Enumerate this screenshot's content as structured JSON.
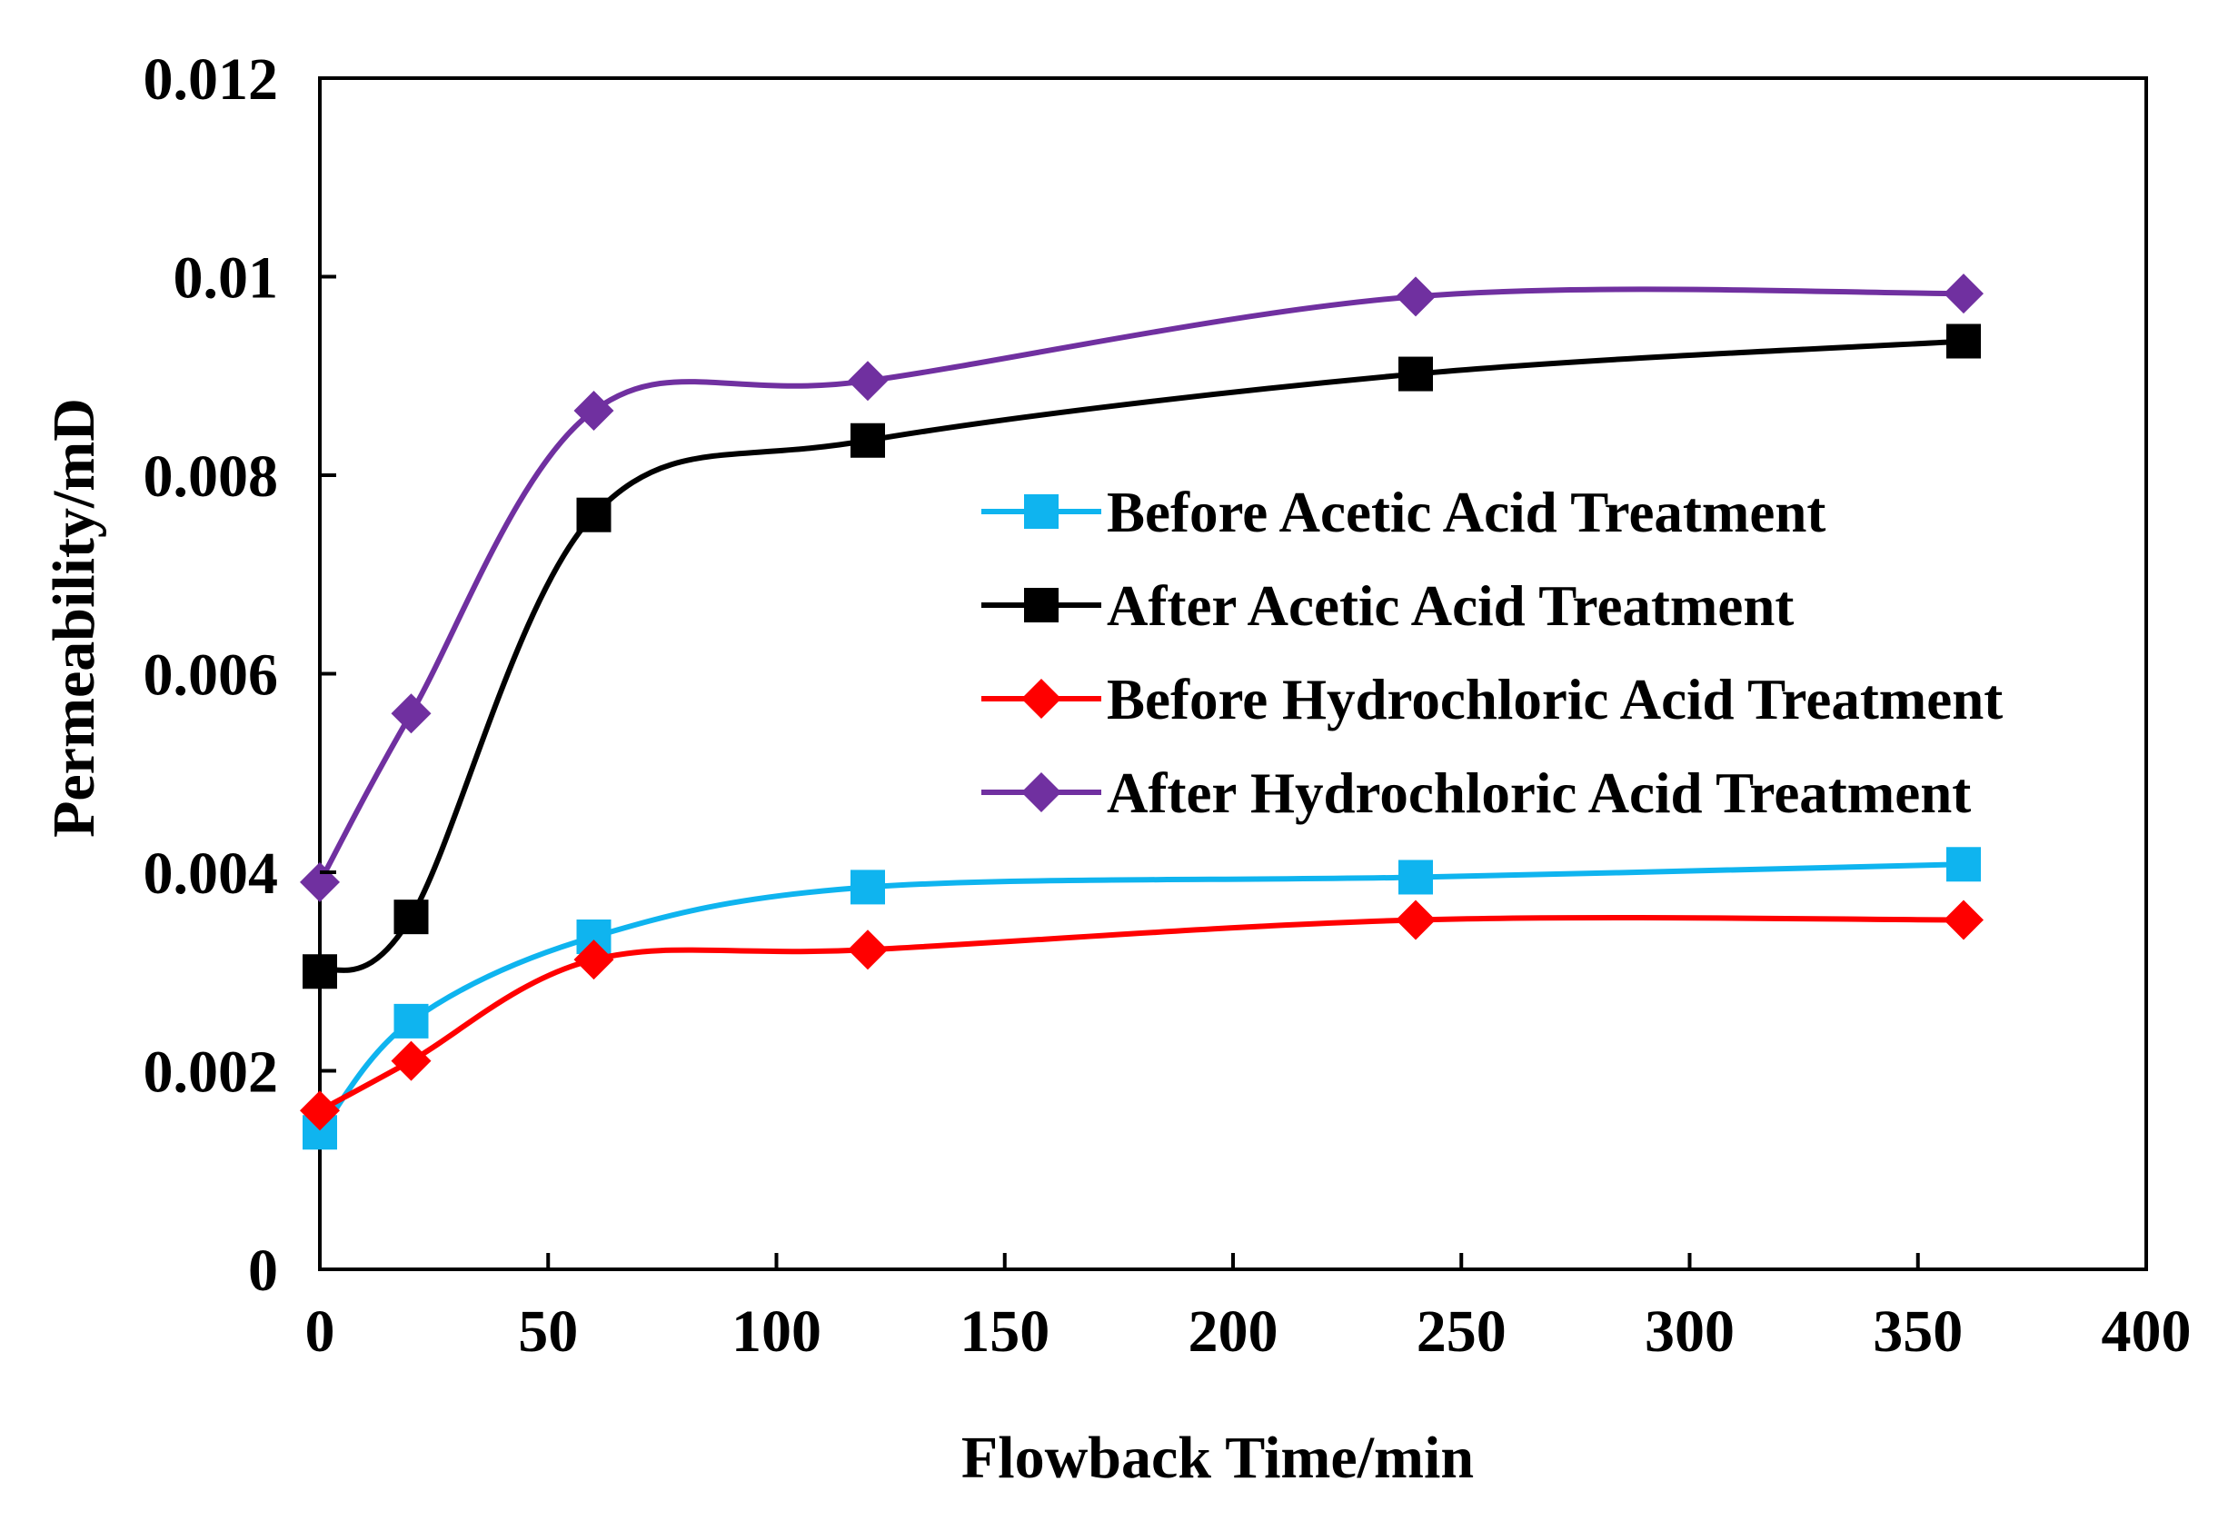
{
  "chart_data": {
    "type": "line",
    "xlabel": "Flowback Time/min",
    "ylabel": "Permeability/mD",
    "xlim": [
      0,
      400
    ],
    "ylim": [
      0,
      0.012
    ],
    "xticks": [
      "0",
      "50",
      "100",
      "150",
      "200",
      "250",
      "300",
      "350",
      "400"
    ],
    "yticks": [
      "0",
      "0.002",
      "0.004",
      "0.006",
      "0.008",
      "0.01",
      "0.012"
    ],
    "grid": false,
    "legend_position": "center-right",
    "x": [
      0,
      20,
      60,
      120,
      240,
      360
    ],
    "series": [
      {
        "name": "Before Acetic Acid Treatment",
        "color": "#0fb4ef",
        "marker": "square",
        "values": [
          0.00138,
          0.0025,
          0.00335,
          0.00385,
          0.00395,
          0.00408
        ]
      },
      {
        "name": "After Acetic Acid Treatment",
        "color": "#000000",
        "marker": "square",
        "values": [
          0.003,
          0.00355,
          0.0076,
          0.00835,
          0.00902,
          0.00935
        ]
      },
      {
        "name": "Before Hydrochloric Acid Treatment",
        "color": "#ff0000",
        "marker": "diamond",
        "values": [
          0.0016,
          0.0021,
          0.00312,
          0.00322,
          0.00352,
          0.00352
        ]
      },
      {
        "name": "After Hydrochloric Acid Treatment",
        "color": "#7030a0",
        "marker": "diamond",
        "values": [
          0.0039,
          0.0056,
          0.00865,
          0.00895,
          0.0098,
          0.00983
        ]
      }
    ]
  }
}
